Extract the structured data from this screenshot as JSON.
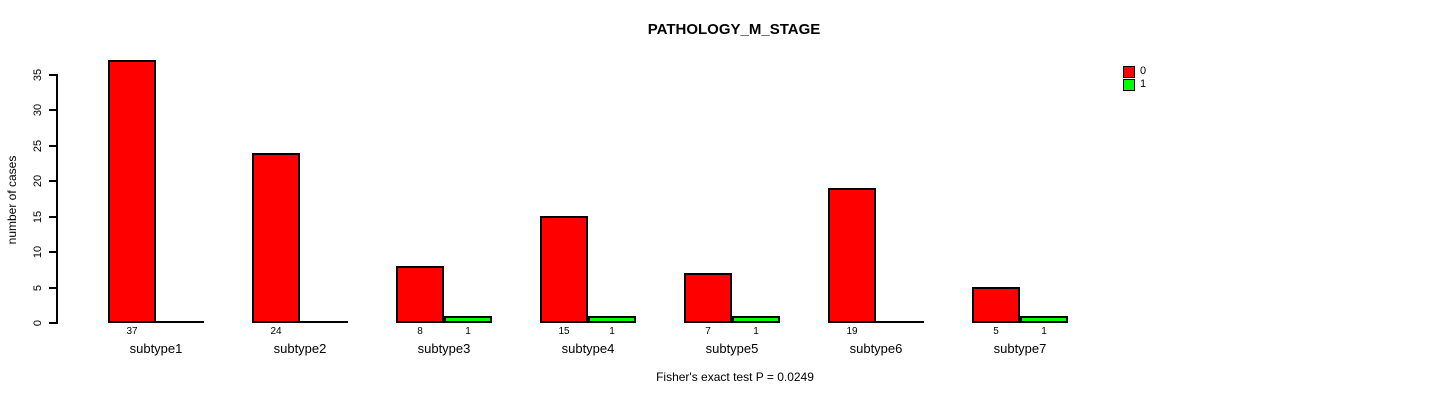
{
  "chart_data": {
    "type": "bar",
    "title": "PATHOLOGY_M_STAGE",
    "ylabel": "number of cases",
    "xlabel": "",
    "categories": [
      "subtype1",
      "subtype2",
      "subtype3",
      "subtype4",
      "subtype5",
      "subtype6",
      "subtype7"
    ],
    "series": [
      {
        "name": "0",
        "color": "#FF0000",
        "values": [
          37,
          24,
          8,
          15,
          7,
          19,
          5
        ]
      },
      {
        "name": "1",
        "color": "#00FF00",
        "values": [
          0,
          0,
          1,
          1,
          1,
          0,
          1
        ]
      }
    ],
    "yticks": [
      0,
      5,
      10,
      15,
      20,
      25,
      30,
      35
    ],
    "ylim": [
      0,
      37
    ],
    "grid": false,
    "legend_position": "top-right",
    "bar_value_labels_shown_when_positive": true,
    "footnote": "Fisher's exact test P = 0.0249"
  }
}
